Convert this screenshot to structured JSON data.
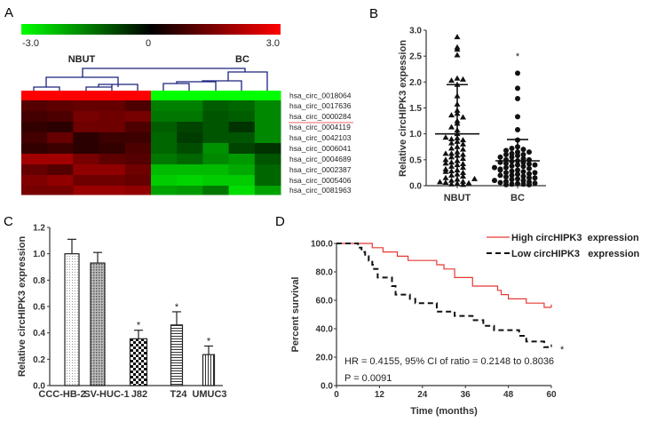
{
  "panels": {
    "a": "A",
    "b": "B",
    "c": "C",
    "d": "D"
  },
  "chart_data": [
    {
      "type": "heatmap",
      "panel": "A",
      "colorscale": {
        "min": -3.0,
        "mid": 0,
        "max": 3.0,
        "min_label": "-3.0",
        "mid_label": "0",
        "max_label": "3.0",
        "min_color": "#00ff00",
        "mid_color": "#000000",
        "max_color": "#ff0000"
      },
      "group_labels": [
        "NBUT",
        "BC"
      ],
      "rows": [
        "hsa_circ_0018064",
        "hsa_circ_0017636",
        "hsa_circ_0000284",
        "hsa_circ_0004119",
        "hsa_circ_0042103",
        "hsa_circ_0006041",
        "hsa_circ_0004689",
        "hsa_circ_0002387",
        "hsa_circ_0005406",
        "hsa_circ_0081963"
      ],
      "highlighted_row": "hsa_circ_0000284",
      "highlight_color": "#e03030",
      "dendrogram_color": "#1a237e",
      "values": [
        [
          3,
          3,
          3,
          3,
          3,
          -3,
          -3,
          -3,
          -3,
          -3
        ],
        [
          1.0,
          1.1,
          1.2,
          1.2,
          0.9,
          -1.5,
          -1.5,
          -1.1,
          -1.2,
          -1.6
        ],
        [
          0.8,
          0.9,
          1.4,
          1.3,
          1.4,
          -1.4,
          -1.4,
          -1.0,
          -1.1,
          -1.6
        ],
        [
          0.6,
          0.5,
          1.3,
          1.3,
          0.9,
          -1.1,
          -0.8,
          -1.0,
          -0.6,
          -1.6
        ],
        [
          0.8,
          1.2,
          0.5,
          0.7,
          0.7,
          -1.2,
          -0.7,
          -1.0,
          -1.0,
          -1.6
        ],
        [
          0.6,
          0.7,
          0.5,
          0.6,
          0.9,
          -1.2,
          -0.9,
          -1.7,
          -0.8,
          -0.6
        ],
        [
          1.9,
          1.9,
          1.4,
          1.1,
          1.0,
          -1.4,
          -1.2,
          -1.6,
          -1.8,
          -1.0
        ],
        [
          1.2,
          1.0,
          1.7,
          1.7,
          1.3,
          -2.2,
          -2.2,
          -2.2,
          -2.0,
          -1.2
        ],
        [
          1.5,
          1.7,
          1.3,
          1.3,
          1.2,
          -2.4,
          -2.5,
          -2.4,
          -2.4,
          -1.2
        ],
        [
          1.4,
          1.4,
          1.8,
          1.8,
          1.7,
          -1.9,
          -1.8,
          -1.4,
          -2.6,
          -1.9
        ]
      ]
    },
    {
      "type": "scatter",
      "panel": "B",
      "ylabel": "Relative circHIPK3  expession",
      "ylim": [
        0,
        3.0
      ],
      "yticks": [
        "0.0",
        "0.5",
        "1.0",
        "1.5",
        "2.0",
        "2.5",
        "3.0"
      ],
      "categories": [
        "NBUT",
        "BC"
      ],
      "series": [
        {
          "category": "NBUT",
          "marker": "triangle",
          "mean": 1.0,
          "sd_upper": 1.95,
          "values": [
            2.87,
            2.67,
            2.63,
            2.52,
            2.07,
            2.03,
            2.05,
            1.95,
            1.73,
            1.57,
            1.45,
            1.39,
            1.36,
            1.32,
            1.25,
            1.2,
            1.13,
            1.07,
            0.92,
            0.9,
            0.88,
            0.85,
            0.82,
            0.8,
            0.75,
            0.72,
            0.7,
            0.65,
            0.62,
            0.6,
            0.58,
            0.55,
            0.52,
            0.5,
            0.48,
            0.45,
            0.42,
            0.4,
            0.37,
            0.35,
            0.32,
            0.3,
            0.28,
            0.25,
            0.22,
            0.2,
            0.18,
            0.15,
            0.12,
            0.1,
            0.08,
            0.06,
            0.05,
            0.04,
            0.03,
            0.02,
            0.07,
            0.13,
            0.27,
            0.43,
            0.62,
            0.93,
            1.0
          ]
        },
        {
          "category": "BC",
          "marker": "circle",
          "mean": 0.48,
          "sd_upper": 0.89,
          "significance": "*",
          "values": [
            2.17,
            1.88,
            1.68,
            1.33,
            1.08,
            0.88,
            0.75,
            0.72,
            0.7,
            0.68,
            0.65,
            0.62,
            0.6,
            0.58,
            0.55,
            0.52,
            0.5,
            0.5,
            0.48,
            0.47,
            0.45,
            0.43,
            0.42,
            0.4,
            0.38,
            0.37,
            0.35,
            0.33,
            0.32,
            0.3,
            0.28,
            0.27,
            0.25,
            0.23,
            0.22,
            0.2,
            0.18,
            0.17,
            0.15,
            0.13,
            0.12,
            0.1,
            0.08,
            0.07,
            0.06,
            0.05,
            0.04,
            0.03,
            0.03,
            0.02,
            0.02,
            0.1,
            0.2,
            0.3,
            0.4,
            0.45,
            0.55,
            0.6,
            0.65,
            0.15,
            0.25,
            0.35
          ]
        }
      ]
    },
    {
      "type": "bar",
      "panel": "C",
      "ylabel": "Relative circHIPK3 expression",
      "ylim": [
        0,
        1.2
      ],
      "yticks": [
        "0.0",
        "0.2",
        "0.4",
        "0.6",
        "0.8",
        "1.0",
        "1.2"
      ],
      "categories": [
        "CCC-HB-2",
        "SV-HUC-1",
        "J82",
        "T24",
        "UMUC3"
      ],
      "values": [
        1.0,
        0.93,
        0.355,
        0.46,
        0.235
      ],
      "errors": [
        0.11,
        0.08,
        0.065,
        0.1,
        0.065
      ],
      "significance": [
        "",
        "",
        "*",
        "*",
        "*"
      ],
      "patterns": [
        "dots",
        "crosshatch",
        "checker",
        "horizontal-lines",
        "vertical-lines"
      ]
    },
    {
      "type": "line",
      "subtype": "kaplan-meier",
      "panel": "D",
      "xlabel": "Time (months)",
      "ylabel": "Percent survival",
      "xlim": [
        0,
        60
      ],
      "ylim": [
        0,
        100
      ],
      "xticks": [
        "0",
        "12",
        "24",
        "36",
        "48",
        "60"
      ],
      "yticks": [
        "0.0",
        "20.0",
        "40.0",
        "60.0",
        "80.0",
        "100.0"
      ],
      "legend_position": "top-right",
      "series": [
        {
          "name": "High circHIPK3  expression",
          "color": "#e53935",
          "style": "solid",
          "steps": [
            [
              0,
              100
            ],
            [
              10,
              97
            ],
            [
              13,
              94
            ],
            [
              17,
              91
            ],
            [
              20,
              88
            ],
            [
              28,
              85
            ],
            [
              30,
              82
            ],
            [
              33,
              76
            ],
            [
              38,
              70
            ],
            [
              45,
              67
            ],
            [
              46,
              64
            ],
            [
              48,
              61
            ],
            [
              53,
              58
            ],
            [
              58,
              55
            ],
            [
              60,
              55
            ]
          ],
          "censor_end": 57
        },
        {
          "name": "Low circHIPK3   expression",
          "color": "#111111",
          "style": "dashed",
          "steps": [
            [
              0,
              100
            ],
            [
              6,
              97
            ],
            [
              7,
              94
            ],
            [
              8,
              91
            ],
            [
              9,
              88
            ],
            [
              10,
              85
            ],
            [
              10.5,
              82
            ],
            [
              11.5,
              76
            ],
            [
              15.5,
              70
            ],
            [
              16.5,
              64
            ],
            [
              20.5,
              61
            ],
            [
              22,
              58
            ],
            [
              28,
              52
            ],
            [
              33,
              49
            ],
            [
              38,
              46
            ],
            [
              41,
              42
            ],
            [
              44,
              39
            ],
            [
              51,
              35
            ],
            [
              53,
              31
            ],
            [
              58,
              27
            ],
            [
              60,
              27
            ]
          ],
          "censor_end": 29,
          "significance": "*"
        }
      ],
      "annotations": [
        "HR = 0.4155, 95% CI of ratio = 0.2148 to 0.8036",
        "P = 0.0091"
      ]
    }
  ]
}
